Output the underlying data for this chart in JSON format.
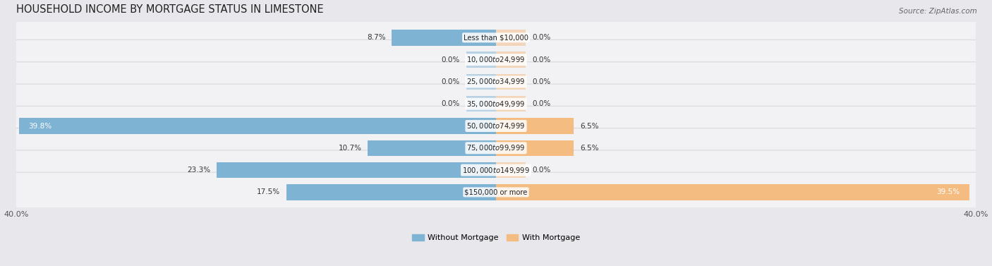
{
  "title": "HOUSEHOLD INCOME BY MORTGAGE STATUS IN LIMESTONE",
  "source": "Source: ZipAtlas.com",
  "categories": [
    "Less than $10,000",
    "$10,000 to $24,999",
    "$25,000 to $34,999",
    "$35,000 to $49,999",
    "$50,000 to $74,999",
    "$75,000 to $99,999",
    "$100,000 to $149,999",
    "$150,000 or more"
  ],
  "without_mortgage": [
    8.7,
    0.0,
    0.0,
    0.0,
    39.8,
    10.7,
    23.3,
    17.5
  ],
  "with_mortgage": [
    0.0,
    0.0,
    0.0,
    0.0,
    6.5,
    6.5,
    0.0,
    39.5
  ],
  "color_without": "#7fb3d3",
  "color_with": "#f4bc80",
  "axis_limit": 40.0,
  "stub_size": 2.5,
  "legend_label_without": "Without Mortgage",
  "legend_label_with": "With Mortgage",
  "bg_color": "#e8e8ec",
  "row_bg_color": "#f2f2f5",
  "row_border_color": "#d8d8de",
  "title_fontsize": 10.5,
  "source_fontsize": 7.5,
  "value_fontsize": 7.5,
  "category_fontsize": 7.2,
  "axis_label_fontsize": 8
}
